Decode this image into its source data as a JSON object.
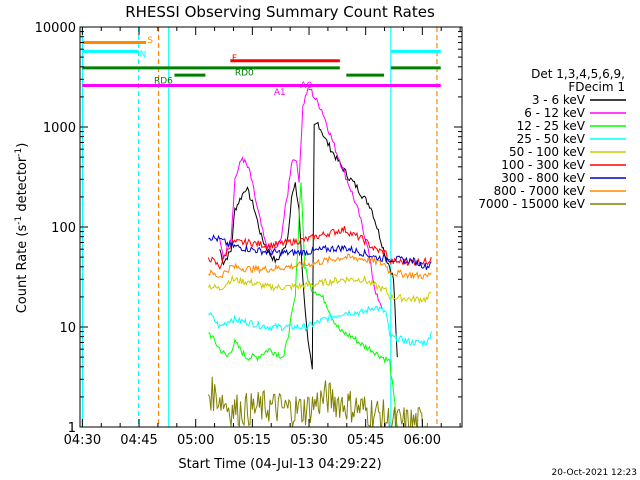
{
  "chart_data": {
    "type": "line",
    "title": "RHESSI Observing Summary Count Rates",
    "xlabel": "Start Time (04-Jul-13 04:29:22)",
    "ylabel_main": "Count Rate (s",
    "ylabel_sup1": "-1",
    "ylabel_mid": " detector",
    "ylabel_sup2": "-1",
    "ylabel_end": ")",
    "y_scale": "log",
    "xlim": [
      "04:29:22",
      "06:10:30"
    ],
    "ylim": [
      1,
      10000
    ],
    "x_ticks": [
      {
        "t": "04:30",
        "m": 0.63
      },
      {
        "t": "04:45",
        "m": 15.63
      },
      {
        "t": "05:00",
        "m": 30.63
      },
      {
        "t": "05:15",
        "m": 45.63
      },
      {
        "t": "05:30",
        "m": 60.63
      },
      {
        "t": "05:45",
        "m": 75.63
      },
      {
        "t": "06:00",
        "m": 90.63
      }
    ],
    "y_ticks": [
      {
        "t": "1",
        "v": 1
      },
      {
        "t": "10",
        "v": 10
      },
      {
        "t": "100",
        "v": 100
      },
      {
        "t": "1000",
        "v": 1000
      },
      {
        "t": "10000",
        "v": 10000
      }
    ],
    "legend": {
      "header_1": "Det 1,3,4,5,6,9,",
      "header_2": "FDecim 1",
      "position": "right"
    },
    "series": [
      {
        "name": "3 - 6 keV",
        "color": "#000000",
        "points": [
          [
            37,
            60
          ],
          [
            38,
            44
          ],
          [
            40,
            58
          ],
          [
            41,
            150
          ],
          [
            44,
            250
          ],
          [
            46,
            160
          ],
          [
            48,
            80
          ],
          [
            50,
            55
          ],
          [
            52,
            45
          ],
          [
            54,
            60
          ],
          [
            55,
            80
          ],
          [
            56,
            200
          ],
          [
            57,
            260
          ],
          [
            58,
            150
          ],
          [
            58.5,
            60
          ],
          [
            59,
            30
          ],
          [
            60,
            10
          ],
          [
            61,
            5
          ],
          [
            61.5,
            3.5
          ],
          [
            62,
            1000
          ],
          [
            63,
            1100
          ],
          [
            65,
            750
          ],
          [
            67,
            550
          ],
          [
            69,
            420
          ],
          [
            71,
            320
          ],
          [
            73,
            260
          ],
          [
            75,
            200
          ],
          [
            77,
            160
          ],
          [
            79,
            90
          ],
          [
            81,
            50
          ],
          [
            82,
            40
          ],
          [
            83,
            30
          ],
          [
            84,
            5
          ]
        ]
      },
      {
        "name": "6 - 12 keV",
        "color": "#ff00ff",
        "points": [
          [
            37,
            70
          ],
          [
            38,
            50
          ],
          [
            40,
            80
          ],
          [
            41,
            300
          ],
          [
            43,
            500
          ],
          [
            45,
            350
          ],
          [
            47,
            150
          ],
          [
            49,
            70
          ],
          [
            51,
            55
          ],
          [
            53,
            70
          ],
          [
            55,
            220
          ],
          [
            56,
            450
          ],
          [
            57,
            500
          ],
          [
            58,
            300
          ],
          [
            59,
            1600
          ],
          [
            60,
            2200
          ],
          [
            61,
            2400
          ],
          [
            62,
            2000
          ],
          [
            64,
            1500
          ],
          [
            66,
            900
          ],
          [
            68,
            550
          ],
          [
            70,
            350
          ],
          [
            72,
            220
          ],
          [
            74,
            130
          ],
          [
            75,
            90
          ],
          [
            76,
            70
          ],
          [
            77,
            40
          ],
          [
            78,
            25
          ],
          [
            79,
            18
          ],
          [
            80,
            15
          ]
        ]
      },
      {
        "name": "12 - 25 keV",
        "color": "#00ff00",
        "points": [
          [
            34,
            9
          ],
          [
            37,
            6
          ],
          [
            39,
            5
          ],
          [
            41,
            7
          ],
          [
            44,
            5
          ],
          [
            47,
            5
          ],
          [
            50,
            6
          ],
          [
            54,
            5
          ],
          [
            57,
            20
          ],
          [
            58.5,
            300
          ],
          [
            59.5,
            40
          ],
          [
            61,
            25
          ],
          [
            63,
            22
          ],
          [
            65,
            18
          ],
          [
            67,
            12
          ],
          [
            69,
            9
          ],
          [
            72,
            8
          ],
          [
            75,
            6.5
          ],
          [
            77,
            6
          ],
          [
            80,
            5
          ],
          [
            82,
            4.5
          ],
          [
            84,
            1
          ]
        ]
      },
      {
        "name": "25 - 50 keV",
        "color": "#00ffff",
        "points": [
          [
            34,
            14
          ],
          [
            37,
            10
          ],
          [
            40,
            12
          ],
          [
            45,
            11
          ],
          [
            50,
            10
          ],
          [
            55,
            10
          ],
          [
            60,
            10
          ],
          [
            65,
            12
          ],
          [
            70,
            14
          ],
          [
            75,
            14
          ],
          [
            78,
            16
          ],
          [
            81,
            14
          ],
          [
            82,
            8
          ],
          [
            88,
            7
          ],
          [
            92,
            7
          ],
          [
            93,
            9
          ]
        ]
      },
      {
        "name": "50 - 100 keV",
        "color": "#cccc00",
        "points": [
          [
            34,
            26
          ],
          [
            37,
            24
          ],
          [
            40,
            30
          ],
          [
            45,
            28
          ],
          [
            50,
            25
          ],
          [
            55,
            25
          ],
          [
            60,
            26
          ],
          [
            65,
            28
          ],
          [
            70,
            30
          ],
          [
            75,
            30
          ],
          [
            78,
            26
          ],
          [
            81,
            23
          ],
          [
            82,
            20
          ],
          [
            88,
            19
          ],
          [
            92,
            19
          ],
          [
            93,
            22
          ]
        ]
      },
      {
        "name": "100 - 300 keV",
        "color": "#ff0000",
        "points": [
          [
            34,
            50
          ],
          [
            37,
            40
          ],
          [
            40,
            70
          ],
          [
            45,
            70
          ],
          [
            50,
            65
          ],
          [
            55,
            70
          ],
          [
            60,
            75
          ],
          [
            65,
            85
          ],
          [
            70,
            95
          ],
          [
            72,
            85
          ],
          [
            75,
            75
          ],
          [
            78,
            60
          ],
          [
            81,
            55
          ],
          [
            82,
            45
          ],
          [
            88,
            45
          ],
          [
            92,
            45
          ],
          [
            93,
            50
          ]
        ]
      },
      {
        "name": "300 - 800 keV",
        "color": "#0000cc",
        "points": [
          [
            34,
            80
          ],
          [
            37,
            75
          ],
          [
            40,
            65
          ],
          [
            45,
            60
          ],
          [
            50,
            56
          ],
          [
            55,
            55
          ],
          [
            60,
            56
          ],
          [
            65,
            60
          ],
          [
            70,
            62
          ],
          [
            75,
            55
          ],
          [
            78,
            50
          ],
          [
            81,
            48
          ],
          [
            82,
            48
          ],
          [
            88,
            46
          ],
          [
            92,
            40
          ],
          [
            93,
            45
          ]
        ]
      },
      {
        "name": "800 - 7000 keV",
        "color": "#ff8800",
        "points": [
          [
            34,
            35
          ],
          [
            37,
            32
          ],
          [
            40,
            40
          ],
          [
            45,
            38
          ],
          [
            50,
            38
          ],
          [
            55,
            40
          ],
          [
            60,
            42
          ],
          [
            65,
            46
          ],
          [
            70,
            50
          ],
          [
            75,
            48
          ],
          [
            78,
            45
          ],
          [
            81,
            42
          ],
          [
            82,
            35
          ],
          [
            88,
            33
          ],
          [
            92,
            32
          ],
          [
            93,
            35
          ]
        ]
      },
      {
        "name": "7000 - 15000 keV",
        "color": "#808000",
        "points": [
          [
            34,
            2.2
          ],
          [
            37,
            2
          ],
          [
            40,
            1.5
          ],
          [
            45,
            1.5
          ],
          [
            50,
            1.6
          ],
          [
            55,
            1.5
          ],
          [
            60,
            1.5
          ],
          [
            65,
            2
          ],
          [
            70,
            1.7
          ],
          [
            75,
            1.5
          ],
          [
            80,
            1.3
          ],
          [
            82,
            1.1
          ],
          [
            88,
            1.1
          ],
          [
            92,
            1.1
          ]
        ]
      }
    ],
    "state_bars": [
      {
        "label": "S",
        "label_color": "#ff8800",
        "color": "#ff8800",
        "v": 7000,
        "seg": [
          [
            0.63,
            17.5
          ]
        ]
      },
      {
        "label": "N",
        "label_color": "#00ffff",
        "color": "#00ffff",
        "v": 5700,
        "seg": [
          [
            0.63,
            15.5
          ],
          [
            82.3,
            95.5
          ]
        ]
      },
      {
        "label": "F",
        "label_color": "#ff0000",
        "color": "#ff0000",
        "v": 4600,
        "seg": [
          [
            39.8,
            68.8
          ]
        ]
      },
      {
        "label": "RD0",
        "label_color": "#008000",
        "color": "#008000",
        "v": 3900,
        "seg": [
          [
            0.63,
            68.8
          ],
          [
            82.3,
            95.5
          ]
        ]
      },
      {
        "label": "RD6",
        "label_color": "#008000",
        "color": "#008000",
        "v": 3300,
        "seg": [
          [
            25,
            33.2
          ],
          [
            70.5,
            80.5
          ]
        ]
      },
      {
        "label": "",
        "label_color": "#ff00ff",
        "color": "#ff00ff",
        "v": 2600,
        "seg": [
          [
            0.63,
            95.5
          ]
        ]
      }
    ],
    "attenuator_labels": [
      {
        "text": "A1",
        "m": 54.5,
        "v": 2300,
        "color": "#ff00ff"
      },
      {
        "text": "A0",
        "m": 61.5,
        "v": 2700,
        "color": "#ff00ff"
      }
    ],
    "vlines": [
      {
        "m": 0.63,
        "color": "#00ffff",
        "style": "solid"
      },
      {
        "m": 15.5,
        "color": "#00ffff",
        "style": "dashed"
      },
      {
        "m": 20.8,
        "color": "#ff8800",
        "style": "dashed"
      },
      {
        "m": 23.5,
        "color": "#00ffff",
        "style": "solid"
      },
      {
        "m": 82.3,
        "color": "#00ffff",
        "style": "solid"
      },
      {
        "m": 94.5,
        "color": "#ff8800",
        "style": "dashed"
      }
    ]
  },
  "footer": {
    "timestamp": "20-Oct-2021 12:23"
  }
}
